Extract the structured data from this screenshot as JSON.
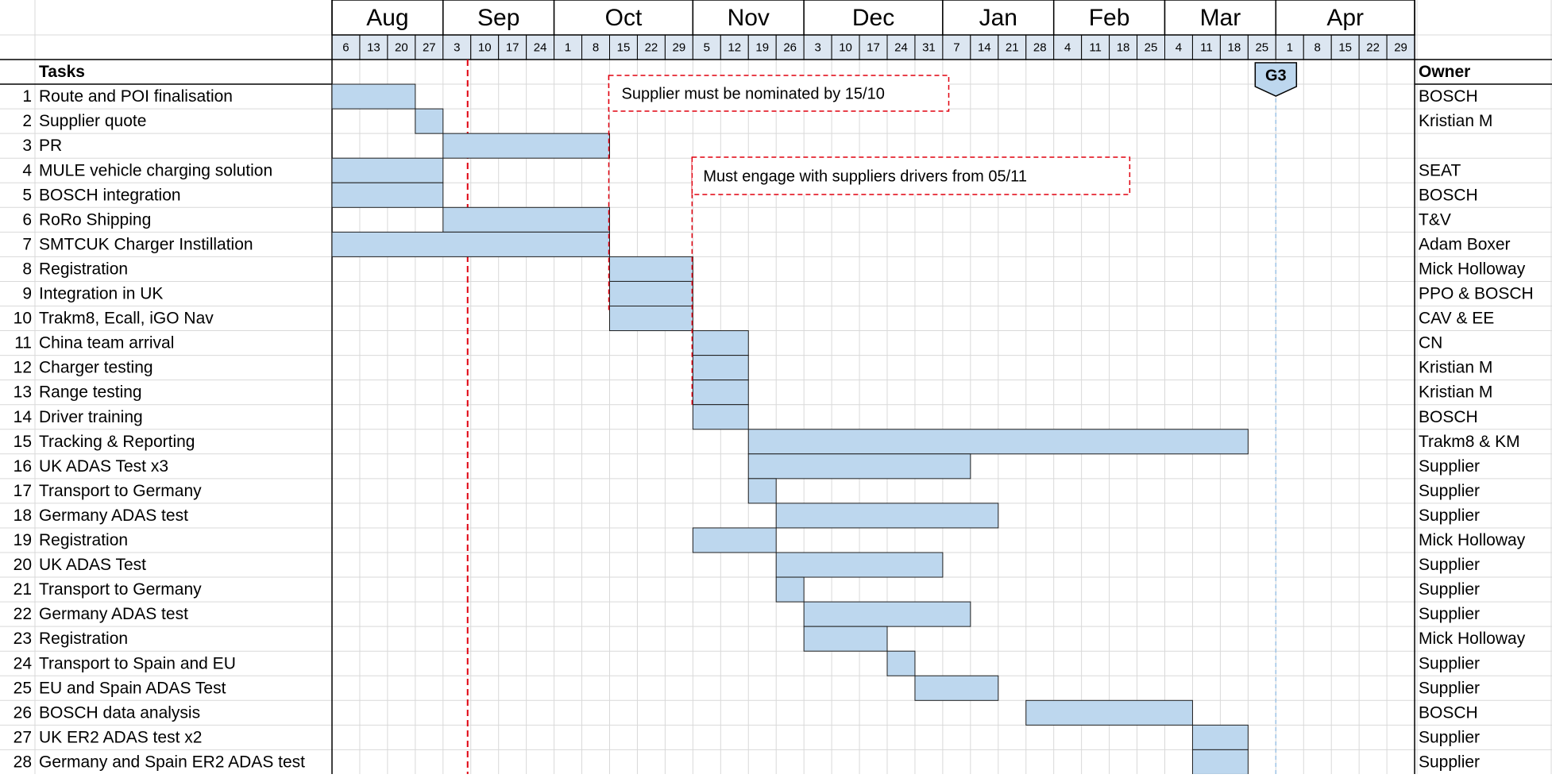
{
  "chart_data": {
    "type": "gantt",
    "months": [
      {
        "label": "Aug",
        "weeks": [
          "6",
          "13",
          "20",
          "27"
        ]
      },
      {
        "label": "Sep",
        "weeks": [
          "3",
          "10",
          "17",
          "24"
        ]
      },
      {
        "label": "Oct",
        "weeks": [
          "1",
          "8",
          "15",
          "22",
          "29"
        ]
      },
      {
        "label": "Nov",
        "weeks": [
          "5",
          "12",
          "19",
          "26"
        ]
      },
      {
        "label": "Dec",
        "weeks": [
          "3",
          "10",
          "17",
          "24",
          "31"
        ]
      },
      {
        "label": "Jan",
        "weeks": [
          "7",
          "14",
          "21",
          "28"
        ]
      },
      {
        "label": "Feb",
        "weeks": [
          "4",
          "11",
          "18",
          "25"
        ]
      },
      {
        "label": "Mar",
        "weeks": [
          "4",
          "11",
          "18",
          "25"
        ]
      },
      {
        "label": "Apr",
        "weeks": [
          "1",
          "8",
          "15",
          "22",
          "29"
        ]
      }
    ],
    "tasks_header": "Tasks",
    "owner_header": "Owner",
    "tasks": [
      {
        "num": "1",
        "name": "Route and POI finalisation",
        "owner": "BOSCH",
        "start": "Aug 6",
        "end": "Aug 27"
      },
      {
        "num": "2",
        "name": "Supplier quote",
        "owner": "Kristian M",
        "start": "Aug 27",
        "end": "Sep 3"
      },
      {
        "num": "3",
        "name": "PR",
        "owner": "",
        "start": "Sep 3",
        "end": "Oct 15"
      },
      {
        "num": "4",
        "name": "MULE vehicle charging solution",
        "owner": "SEAT",
        "start": "Aug 6",
        "end": "Sep 3"
      },
      {
        "num": "5",
        "name": "BOSCH integration",
        "owner": "BOSCH",
        "start": "Aug 6",
        "end": "Sep 3"
      },
      {
        "num": "6",
        "name": "RoRo Shipping",
        "owner": "T&V",
        "start": "Sep 3",
        "end": "Oct 15"
      },
      {
        "num": "7",
        "name": "SMTCUK Charger Instillation",
        "owner": "Adam Boxer",
        "start": "Aug 6",
        "end": "Oct 15"
      },
      {
        "num": "8",
        "name": "Registration",
        "owner": "Mick Holloway",
        "start": "Oct 15",
        "end": "Nov 5"
      },
      {
        "num": "9",
        "name": "Integration in UK",
        "owner": "PPO & BOSCH",
        "start": "Oct 15",
        "end": "Nov 5"
      },
      {
        "num": "10",
        "name": "Trakm8, Ecall, iGO Nav",
        "owner": "CAV & EE",
        "start": "Oct 15",
        "end": "Nov 5"
      },
      {
        "num": "11",
        "name": "China team arrival",
        "owner": "CN",
        "start": "Nov 5",
        "end": "Nov 19"
      },
      {
        "num": "12",
        "name": "Charger testing",
        "owner": "Kristian M",
        "start": "Nov 5",
        "end": "Nov 19"
      },
      {
        "num": "13",
        "name": "Range testing",
        "owner": "Kristian M",
        "start": "Nov 5",
        "end": "Nov 19"
      },
      {
        "num": "14",
        "name": "Driver training",
        "owner": "BOSCH",
        "start": "Nov 5",
        "end": "Nov 19"
      },
      {
        "num": "15",
        "name": "Tracking & Reporting",
        "owner": "Trakm8 & KM",
        "start": "Nov 19",
        "end": "Mar 25"
      },
      {
        "num": "16",
        "name": "UK ADAS Test x3",
        "owner": "Supplier",
        "start": "Nov 19",
        "end": "Jan 14"
      },
      {
        "num": "17",
        "name": "Transport to Germany",
        "owner": "Supplier",
        "start": "Nov 19",
        "end": "Nov 26"
      },
      {
        "num": "18",
        "name": "Germany ADAS test",
        "owner": "Supplier",
        "start": "Nov 26",
        "end": "Jan 21"
      },
      {
        "num": "19",
        "name": "Registration",
        "owner": "Mick Holloway",
        "start": "Nov 5",
        "end": "Nov 26"
      },
      {
        "num": "20",
        "name": "UK ADAS Test",
        "owner": "Supplier",
        "start": "Nov 26",
        "end": "Jan 7"
      },
      {
        "num": "21",
        "name": "Transport to Germany",
        "owner": "Supplier",
        "start": "Nov 26",
        "end": "Dec 3"
      },
      {
        "num": "22",
        "name": "Germany ADAS test",
        "owner": "Supplier",
        "start": "Dec 3",
        "end": "Jan 14"
      },
      {
        "num": "23",
        "name": "Registration",
        "owner": "Mick Holloway",
        "start": "Dec 3",
        "end": "Dec 24"
      },
      {
        "num": "24",
        "name": "Transport to Spain and EU",
        "owner": "Supplier",
        "start": "Dec 24",
        "end": "Dec 31"
      },
      {
        "num": "25",
        "name": "EU and Spain ADAS Test",
        "owner": "Supplier",
        "start": "Dec 31",
        "end": "Jan 21"
      },
      {
        "num": "26",
        "name": "BOSCH data analysis",
        "owner": "BOSCH",
        "start": "Jan 28",
        "end": "Mar 11"
      },
      {
        "num": "27",
        "name": "UK ER2 ADAS test x2",
        "owner": "Supplier",
        "start": "Mar 11",
        "end": "Mar 25"
      },
      {
        "num": "28",
        "name": "Germany and Spain ER2 ADAS test",
        "owner": "Supplier",
        "start": "Mar 11",
        "end": "Mar 25"
      }
    ],
    "today_line": "Sep 10",
    "milestone": {
      "label": "G3",
      "date": "Apr 1"
    },
    "annotations": [
      {
        "text": "Supplier must be nominated by 15/10",
        "date": "Oct 15"
      },
      {
        "text": "Must engage with suppliers drivers from 05/11",
        "date": "Nov 5"
      }
    ],
    "colors": {
      "bar": "#bdd7ee",
      "bar_border": "#1f1f1f",
      "grid": "#d9d9d9",
      "date_cell": "#dce6f1",
      "marker": "#e0000f",
      "milestone_line": "#9dc3e6"
    }
  }
}
